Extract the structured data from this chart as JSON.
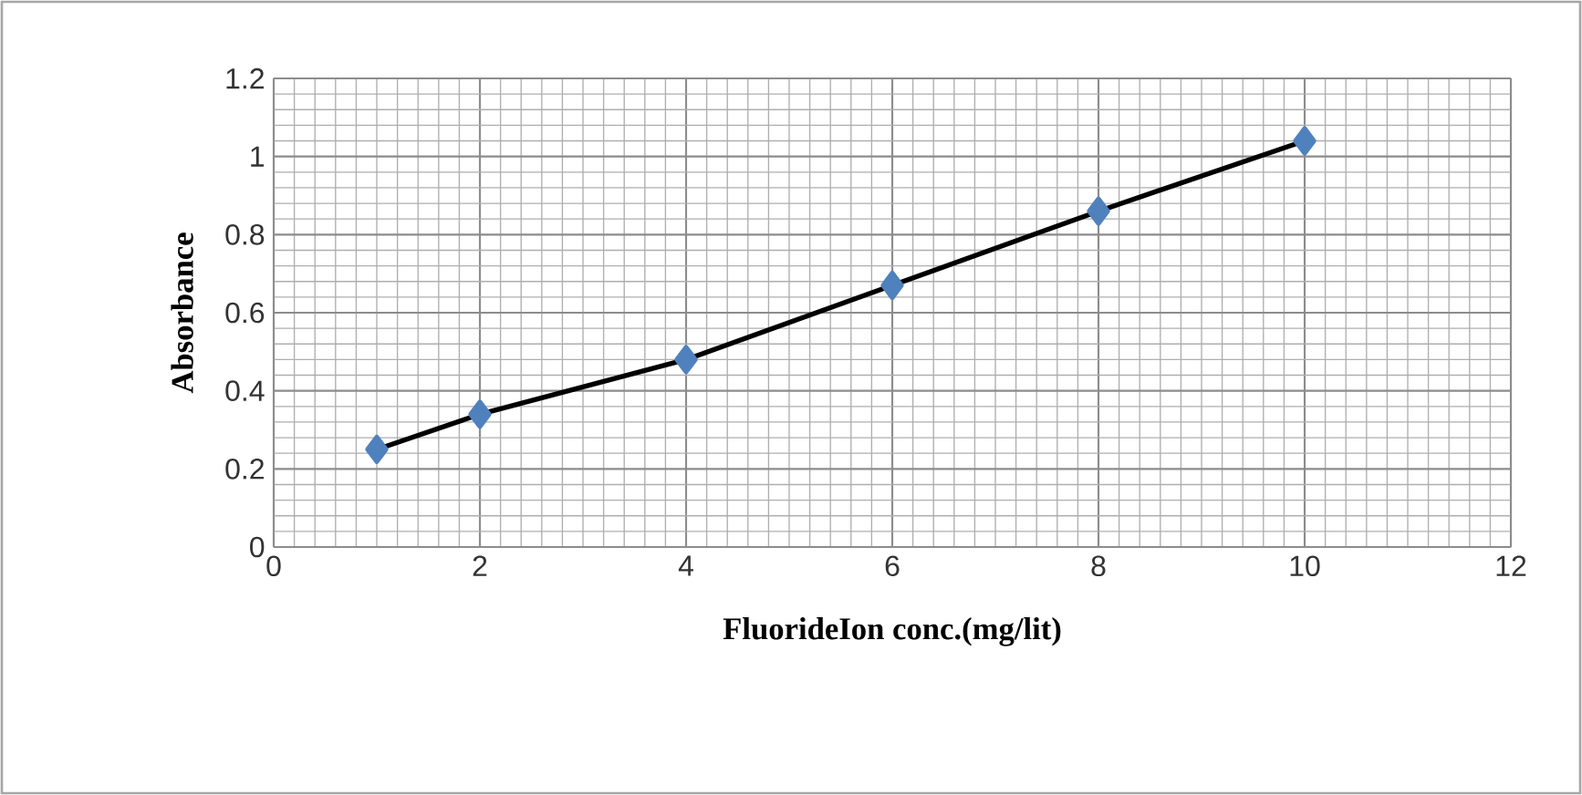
{
  "chart_data": {
    "type": "line",
    "xlabel": "FluorideIon conc.(mg/lit)",
    "ylabel": "Absorbance",
    "x": [
      1,
      2,
      4,
      6,
      8,
      10
    ],
    "series": [
      {
        "color": "#000000",
        "values": [
          0.25,
          0.34,
          0.48,
          0.67,
          0.86,
          1.04
        ]
      }
    ],
    "marker": "diamond",
    "line_style": "solid",
    "grid": true,
    "xlim": [
      0,
      12
    ],
    "xticks": [
      0,
      2,
      4,
      6,
      8,
      10,
      12
    ],
    "ylim": [
      0,
      1.2
    ],
    "yticks": [
      {
        "value": 0,
        "label": "0"
      },
      {
        "value": 0.2,
        "label": "0.2"
      },
      {
        "value": 0.4,
        "label": "0.4"
      },
      {
        "value": 0.6,
        "label": "0.6"
      },
      {
        "value": 0.8,
        "label": "0.8"
      },
      {
        "value": 1,
        "label": "1"
      },
      {
        "value": 1.2,
        "label": "1.2"
      }
    ]
  }
}
